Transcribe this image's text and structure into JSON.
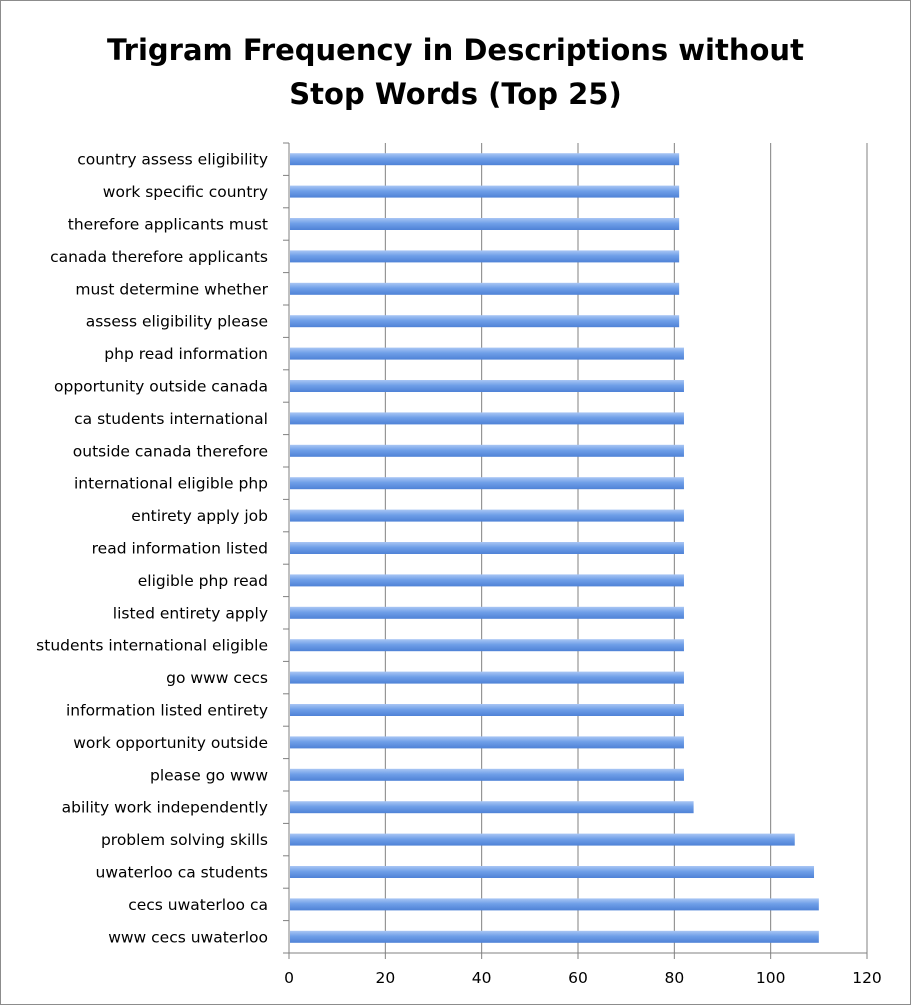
{
  "chart_data": {
    "type": "bar",
    "orientation": "horizontal",
    "title_lines": [
      "Trigram Frequency in Descriptions without",
      "Stop Words (Top 25)"
    ],
    "categories": [
      "country assess eligibility",
      "work specific country",
      "therefore applicants must",
      "canada therefore applicants",
      "must determine whether",
      "assess eligibility please",
      "php read information",
      "opportunity outside canada",
      "ca students international",
      "outside canada therefore",
      "international eligible php",
      "entirety apply job",
      "read information listed",
      "eligible php read",
      "listed entirety apply",
      "students international eligible",
      "go www cecs",
      "information listed entirety",
      "work opportunity outside",
      "please go www",
      "ability work independently",
      "problem solving skills",
      "uwaterloo ca students",
      "cecs uwaterloo ca",
      "www cecs uwaterloo"
    ],
    "values": [
      81,
      81,
      81,
      81,
      81,
      81,
      82,
      82,
      82,
      82,
      82,
      82,
      82,
      82,
      82,
      82,
      82,
      82,
      82,
      82,
      84,
      105,
      109,
      110,
      110
    ],
    "xlim": [
      0,
      120
    ],
    "xticks": [
      "0",
      "20",
      "40",
      "60",
      "80",
      "100",
      "120"
    ],
    "grid": "vertical",
    "legend": "none",
    "colors": {
      "bar": "#6f9fe8",
      "bar_light": "#a9c6f4",
      "grid": "#808080",
      "axis": "#808080"
    }
  }
}
